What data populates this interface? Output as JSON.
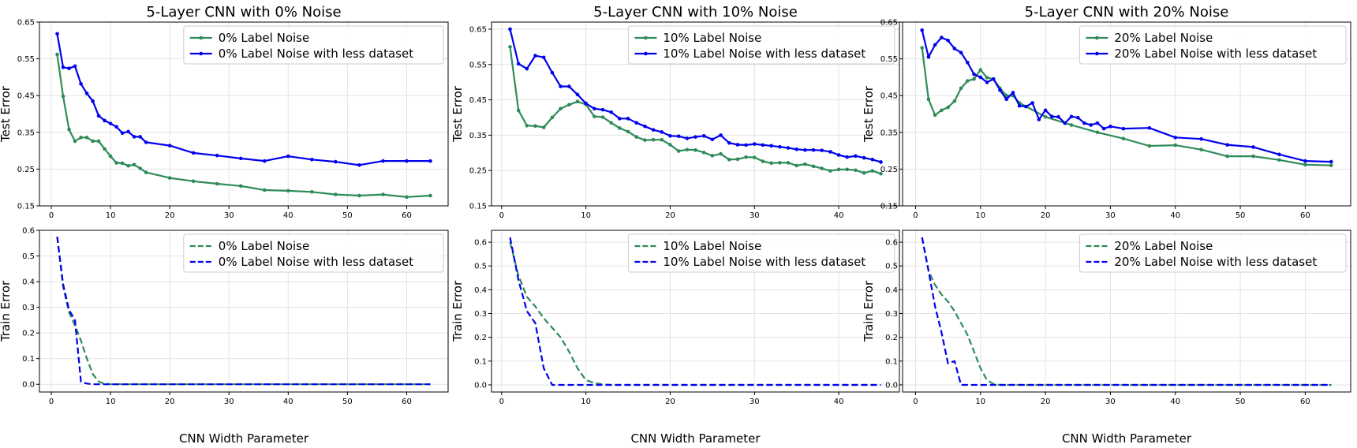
{
  "figure": {
    "colors": {
      "green": "#2e8b57",
      "blue": "#0000ee",
      "grid": "#e3e3e3"
    },
    "xlabel": "CNN Width Parameter",
    "panels": [
      {
        "title": "5-Layer CNN with 0% Noise",
        "test_ylabel": "Test Error",
        "train_ylabel": "Train Error",
        "legend_test": [
          "0%  Label Noise",
          "0%  Label Noise with less dataset"
        ],
        "legend_train": [
          "0%  Label Noise",
          "0%  Label Noise with less dataset"
        ]
      },
      {
        "title": "5-Layer CNN with 10% Noise",
        "test_ylabel": "Test Error",
        "train_ylabel": "Train Error",
        "legend_test": [
          "10%  Label Noise",
          "10%  Label Noise with less dataset"
        ],
        "legend_train": [
          "10%  Label Noise",
          "10%  Label Noise with less dataset"
        ]
      },
      {
        "title": "5-Layer CNN with 20% Noise",
        "test_ylabel": "Test Error",
        "train_ylabel": "Train Error",
        "legend_test": [
          "20%  Label Noise",
          "20%  Label Noise with less dataset"
        ],
        "legend_train": [
          "20%  Label Noise",
          "20%  Label Noise with less dataset"
        ]
      }
    ]
  },
  "chart_data": [
    {
      "type": "line",
      "title": "5-Layer CNN with 0% Noise",
      "xlabel": "",
      "ylabel": "Test Error",
      "xlim": [
        -2,
        67
      ],
      "ylim": [
        0.15,
        0.65
      ],
      "xticks": [
        0,
        10,
        20,
        30,
        40,
        50,
        60
      ],
      "yticks": [
        0.15,
        0.25,
        0.35,
        0.45,
        0.55,
        0.65
      ],
      "grid": true,
      "legend": "top-right",
      "series": [
        {
          "name": "0%  Label Noise",
          "color": "#2e8b57",
          "style": "solid-markers",
          "x": [
            1,
            2,
            3,
            4,
            5,
            6,
            7,
            8,
            9,
            10,
            11,
            12,
            13,
            14,
            15,
            16,
            20,
            24,
            28,
            32,
            36,
            40,
            44,
            48,
            52,
            56,
            60,
            64
          ],
          "y": [
            0.562,
            0.448,
            0.358,
            0.326,
            0.336,
            0.336,
            0.326,
            0.326,
            0.305,
            0.285,
            0.267,
            0.266,
            0.259,
            0.262,
            0.252,
            0.241,
            0.226,
            0.217,
            0.21,
            0.204,
            0.193,
            0.191,
            0.188,
            0.181,
            0.178,
            0.181,
            0.174,
            0.178
          ]
        },
        {
          "name": "0%  Label Noise with less dataset",
          "color": "#0000ee",
          "style": "solid-markers",
          "x": [
            1,
            2,
            3,
            4,
            5,
            6,
            7,
            8,
            9,
            10,
            11,
            12,
            13,
            14,
            15,
            16,
            20,
            24,
            28,
            32,
            36,
            40,
            44,
            48,
            52,
            56,
            60,
            64
          ],
          "y": [
            0.618,
            0.527,
            0.524,
            0.53,
            0.482,
            0.456,
            0.435,
            0.395,
            0.382,
            0.374,
            0.365,
            0.348,
            0.352,
            0.338,
            0.338,
            0.323,
            0.314,
            0.294,
            0.287,
            0.279,
            0.272,
            0.285,
            0.276,
            0.27,
            0.261,
            0.272,
            0.272,
            0.272
          ]
        }
      ]
    },
    {
      "type": "line",
      "title": "",
      "xlabel": "CNN Width Parameter",
      "ylabel": "Train Error",
      "xlim": [
        -2,
        67
      ],
      "ylim": [
        -0.03,
        0.6
      ],
      "xticks": [
        0,
        10,
        20,
        30,
        40,
        50,
        60
      ],
      "yticks": [
        0.0,
        0.1,
        0.2,
        0.3,
        0.4,
        0.5,
        0.6
      ],
      "grid": true,
      "legend": "top-right",
      "series": [
        {
          "name": "0%  Label Noise",
          "color": "#2e8b57",
          "style": "dashed",
          "x": [
            1,
            2,
            3,
            4,
            5,
            6,
            7,
            8,
            9,
            10,
            12,
            16,
            20,
            30,
            40,
            50,
            60,
            64
          ],
          "y": [
            0.575,
            0.38,
            0.28,
            0.23,
            0.17,
            0.1,
            0.04,
            0.01,
            0.003,
            0.0,
            0.0,
            0.0,
            0.0,
            0.0,
            0.0,
            0.0,
            0.0,
            0.0
          ]
        },
        {
          "name": "0%  Label Noise with less dataset",
          "color": "#0000ee",
          "style": "dashed",
          "x": [
            1,
            2,
            3,
            4,
            5,
            6,
            7,
            8,
            10,
            16,
            20,
            30,
            40,
            50,
            60,
            64
          ],
          "y": [
            0.575,
            0.39,
            0.29,
            0.25,
            0.01,
            0.003,
            0.0,
            0.0,
            0.0,
            0.0,
            0.0,
            0.0,
            0.0,
            0.0,
            0.0,
            0.0
          ]
        }
      ]
    },
    {
      "type": "line",
      "title": "5-Layer CNN with 10% Noise",
      "xlabel": "",
      "ylabel": "Test Error",
      "xlim": [
        -1.2,
        47.2
      ],
      "ylim": [
        0.15,
        0.67
      ],
      "xticks": [
        0,
        10,
        20,
        30,
        40
      ],
      "yticks": [
        0.15,
        0.25,
        0.35,
        0.45,
        0.55,
        0.65
      ],
      "grid": true,
      "legend": "top-right",
      "series": [
        {
          "name": "10%  Label Noise",
          "color": "#2e8b57",
          "style": "solid-markers",
          "x": [
            1,
            2,
            3,
            4,
            5,
            6,
            7,
            8,
            9,
            10,
            11,
            12,
            13,
            14,
            15,
            16,
            17,
            18,
            19,
            20,
            21,
            22,
            23,
            24,
            25,
            26,
            27,
            28,
            29,
            30,
            31,
            32,
            33,
            34,
            35,
            36,
            37,
            38,
            39,
            40,
            41,
            42,
            43,
            44,
            45
          ],
          "y": [
            0.6,
            0.42,
            0.377,
            0.376,
            0.372,
            0.4,
            0.425,
            0.436,
            0.445,
            0.437,
            0.403,
            0.401,
            0.385,
            0.37,
            0.36,
            0.345,
            0.336,
            0.337,
            0.337,
            0.323,
            0.305,
            0.309,
            0.308,
            0.301,
            0.292,
            0.297,
            0.281,
            0.282,
            0.288,
            0.287,
            0.276,
            0.271,
            0.272,
            0.272,
            0.264,
            0.268,
            0.262,
            0.256,
            0.249,
            0.253,
            0.253,
            0.251,
            0.243,
            0.249,
            0.241
          ]
        },
        {
          "name": "10%  Label Noise with less dataset",
          "color": "#0000ee",
          "style": "solid-markers",
          "x": [
            1,
            2,
            3,
            4,
            5,
            6,
            7,
            8,
            9,
            10,
            11,
            12,
            13,
            14,
            15,
            16,
            17,
            18,
            19,
            20,
            21,
            22,
            23,
            24,
            25,
            26,
            27,
            28,
            29,
            30,
            31,
            32,
            33,
            34,
            35,
            36,
            37,
            38,
            39,
            40,
            41,
            42,
            43,
            44,
            45
          ],
          "y": [
            0.65,
            0.552,
            0.538,
            0.575,
            0.57,
            0.527,
            0.488,
            0.488,
            0.465,
            0.44,
            0.425,
            0.422,
            0.415,
            0.397,
            0.397,
            0.385,
            0.375,
            0.365,
            0.359,
            0.348,
            0.347,
            0.341,
            0.345,
            0.348,
            0.338,
            0.35,
            0.328,
            0.323,
            0.322,
            0.325,
            0.322,
            0.32,
            0.317,
            0.314,
            0.31,
            0.308,
            0.308,
            0.307,
            0.303,
            0.294,
            0.288,
            0.291,
            0.286,
            0.281,
            0.274
          ]
        }
      ]
    },
    {
      "type": "line",
      "title": "",
      "xlabel": "CNN Width Parameter",
      "ylabel": "Train Error",
      "xlim": [
        -1.2,
        47.2
      ],
      "ylim": [
        -0.03,
        0.65
      ],
      "xticks": [
        0,
        10,
        20,
        30,
        40
      ],
      "yticks": [
        0.0,
        0.1,
        0.2,
        0.3,
        0.4,
        0.5,
        0.6
      ],
      "grid": true,
      "legend": "top-right",
      "series": [
        {
          "name": "10%  Label Noise",
          "color": "#2e8b57",
          "style": "dashed",
          "x": [
            1,
            2,
            3,
            4,
            5,
            6,
            7,
            8,
            9,
            10,
            11,
            12,
            13,
            20,
            30,
            40,
            45
          ],
          "y": [
            0.6,
            0.46,
            0.37,
            0.33,
            0.28,
            0.24,
            0.2,
            0.14,
            0.07,
            0.02,
            0.008,
            0.002,
            0.0,
            0.0,
            0.0,
            0.0,
            0.0
          ]
        },
        {
          "name": "10%  Label Noise with less dataset",
          "color": "#0000ee",
          "style": "dashed",
          "x": [
            1,
            2,
            3,
            4,
            5,
            6,
            7,
            10,
            20,
            30,
            40,
            45
          ],
          "y": [
            0.62,
            0.44,
            0.31,
            0.26,
            0.07,
            0.0,
            0.0,
            0.0,
            0.0,
            0.0,
            0.0,
            0.0
          ]
        }
      ]
    },
    {
      "type": "line",
      "title": "5-Layer CNN with 20% Noise",
      "xlabel": "",
      "ylabel": "Test Error",
      "xlim": [
        -2,
        67
      ],
      "ylim": [
        0.15,
        0.65
      ],
      "xticks": [
        0,
        10,
        20,
        30,
        40,
        50,
        60
      ],
      "yticks": [
        0.15,
        0.25,
        0.35,
        0.45,
        0.55,
        0.65
      ],
      "grid": true,
      "legend": "top-right",
      "series": [
        {
          "name": "20%  Label Noise",
          "color": "#2e8b57",
          "style": "solid-markers",
          "x": [
            1,
            2,
            3,
            4,
            5,
            6,
            7,
            8,
            9,
            10,
            11,
            12,
            13,
            14,
            15,
            16,
            20,
            24,
            28,
            32,
            36,
            40,
            44,
            48,
            52,
            56,
            60,
            64
          ],
          "y": [
            0.58,
            0.44,
            0.397,
            0.41,
            0.418,
            0.435,
            0.47,
            0.49,
            0.495,
            0.52,
            0.499,
            0.495,
            0.47,
            0.45,
            0.45,
            0.43,
            0.392,
            0.37,
            0.35,
            0.333,
            0.313,
            0.315,
            0.303,
            0.285,
            0.285,
            0.275,
            0.262,
            0.26
          ]
        },
        {
          "name": "20%  Label Noise with less dataset",
          "color": "#0000ee",
          "style": "solid-markers",
          "x": [
            1,
            2,
            3,
            4,
            5,
            6,
            7,
            8,
            9,
            10,
            11,
            12,
            13,
            14,
            15,
            16,
            17,
            18,
            19,
            20,
            21,
            22,
            23,
            24,
            25,
            26,
            27,
            28,
            29,
            30,
            32,
            36,
            40,
            44,
            48,
            52,
            56,
            60,
            64
          ],
          "y": [
            0.628,
            0.555,
            0.588,
            0.608,
            0.6,
            0.578,
            0.567,
            0.54,
            0.508,
            0.5,
            0.486,
            0.495,
            0.465,
            0.44,
            0.458,
            0.422,
            0.42,
            0.43,
            0.385,
            0.41,
            0.393,
            0.392,
            0.375,
            0.393,
            0.39,
            0.375,
            0.37,
            0.375,
            0.36,
            0.366,
            0.36,
            0.362,
            0.336,
            0.332,
            0.316,
            0.31,
            0.29,
            0.272,
            0.27
          ]
        }
      ]
    },
    {
      "type": "line",
      "title": "",
      "xlabel": "CNN Width Parameter",
      "ylabel": "Train Error",
      "xlim": [
        -2,
        67
      ],
      "ylim": [
        -0.03,
        0.65
      ],
      "xticks": [
        0,
        10,
        20,
        30,
        40,
        50,
        60
      ],
      "yticks": [
        0.0,
        0.1,
        0.2,
        0.3,
        0.4,
        0.5,
        0.6
      ],
      "grid": true,
      "legend": "top-right",
      "series": [
        {
          "name": "20%  Label Noise",
          "color": "#2e8b57",
          "style": "dashed",
          "x": [
            1,
            2,
            3,
            4,
            5,
            6,
            7,
            8,
            9,
            10,
            11,
            12,
            13,
            20,
            30,
            40,
            50,
            60,
            64
          ],
          "y": [
            0.62,
            0.48,
            0.42,
            0.38,
            0.35,
            0.31,
            0.26,
            0.21,
            0.14,
            0.07,
            0.02,
            0.004,
            0.0,
            0.0,
            0.0,
            0.0,
            0.0,
            0.0,
            0.0
          ]
        },
        {
          "name": "20%  Label Noise with less dataset",
          "color": "#0000ee",
          "style": "dashed",
          "x": [
            1,
            2,
            3,
            4,
            5,
            6,
            7,
            8,
            10,
            20,
            30,
            40,
            50,
            60,
            64
          ],
          "y": [
            0.62,
            0.48,
            0.33,
            0.22,
            0.09,
            0.1,
            0.0,
            0.0,
            0.0,
            0.0,
            0.0,
            0.0,
            0.0,
            0.0,
            0.0
          ]
        }
      ]
    }
  ]
}
